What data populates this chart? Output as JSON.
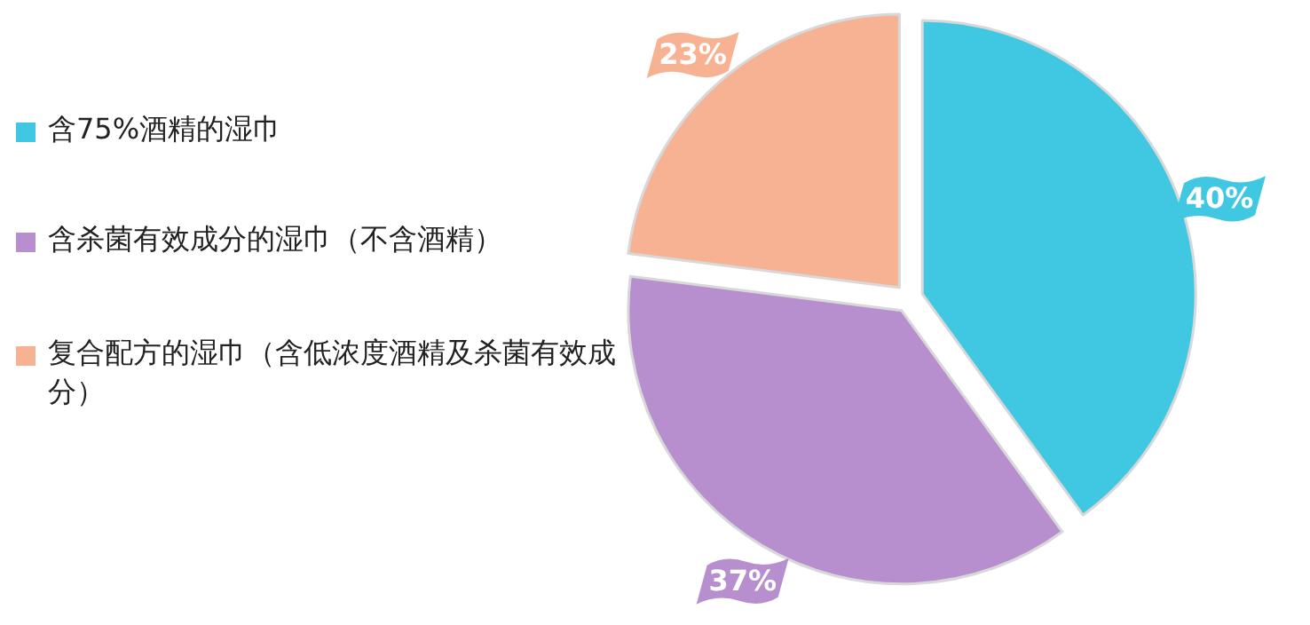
{
  "chart_data": {
    "type": "pie",
    "categories": [
      "含75%酒精的湿巾",
      "含杀菌有效成分的湿巾（不含酒精）",
      "复合配方的湿巾（含低浓度酒精及杀菌有效成分）"
    ],
    "values": [
      40,
      37,
      23
    ],
    "colors": [
      "#40c8e2",
      "#b88fce",
      "#f7b294"
    ],
    "value_labels": [
      "40%",
      "37%",
      "23%"
    ],
    "legend": "left"
  }
}
